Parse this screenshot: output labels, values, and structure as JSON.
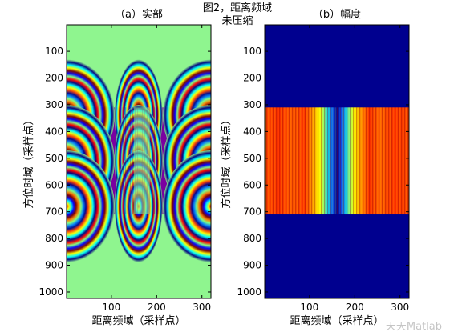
{
  "figure": {
    "suptitle_line1": "图2，距离频域",
    "suptitle_line2": "未压缩",
    "watermark": "天天Matlab"
  },
  "chart_data": [
    {
      "type": "heatmap",
      "title": "（a）实部",
      "xlabel": "距离频域（采样点）",
      "ylabel": "方位时域（采样点）",
      "xlim": [
        1,
        320
      ],
      "ylim": [
        1,
        1024
      ],
      "y_reversed": true,
      "xticks": [
        100,
        200,
        300
      ],
      "yticks": [
        100,
        200,
        300,
        400,
        500,
        600,
        700,
        800,
        900,
        1000
      ],
      "background_color": "#8ff58f",
      "signal_rows": [
        310,
        710
      ],
      "description_values": {
        "colormap": "jet",
        "pattern": "interference fringes (real part of chirped echo)",
        "fringe_centers_x": [
          1,
          160,
          320
        ],
        "fringe_centers_y": [
          340,
          510,
          680
        ]
      }
    },
    {
      "type": "heatmap",
      "title": "（b）幅度",
      "xlabel": "距离频域（采样点）",
      "ylabel": "方位时域（采样点）",
      "xlim": [
        1,
        320
      ],
      "ylim": [
        1,
        1024
      ],
      "y_reversed": true,
      "xticks": [
        100,
        200,
        300
      ],
      "yticks": [
        100,
        200,
        300,
        400,
        500,
        600,
        700,
        800,
        900,
        1000
      ],
      "background_color": "#00008f",
      "signal_rows": [
        310,
        710
      ],
      "description_values": {
        "colormap": "jet",
        "profile_dip_center_x": 160,
        "profile_dip_width": 50
      }
    }
  ]
}
